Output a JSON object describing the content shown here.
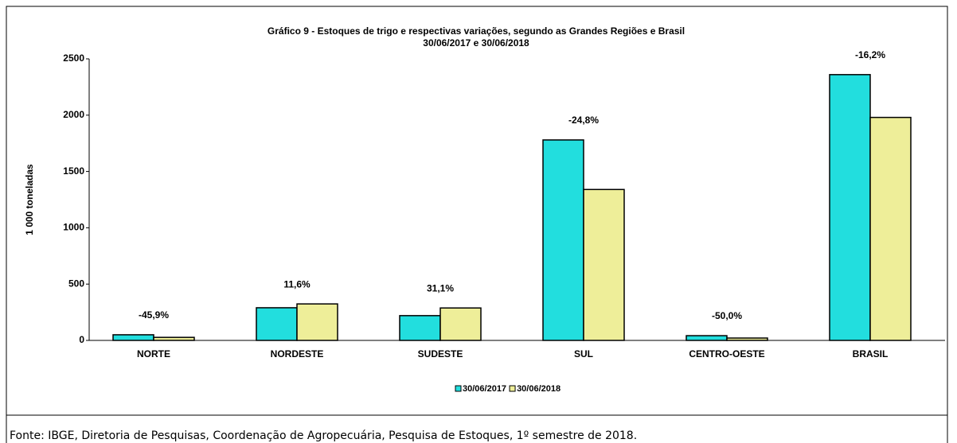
{
  "chart_data": {
    "type": "bar",
    "title": "Gráfico 9 - Estoques de trigo e respectivas variações, segundo as Grandes Regiões e Brasil",
    "subtitle": "30/06/2017 e 30/06/2018",
    "y_label": "1 000 toneladas",
    "categories": [
      "NORTE",
      "NORDESTE",
      "SUDESTE",
      "SUL",
      "CENTRO-OESTE",
      "BRASIL"
    ],
    "series": [
      {
        "name": "30/06/2017",
        "color": "#22dede",
        "values": [
          50,
          290,
          220,
          1780,
          42,
          2360
        ]
      },
      {
        "name": "30/06/2018",
        "color": "#eeee99",
        "values": [
          27,
          324,
          288,
          1340,
          21,
          1980
        ]
      }
    ],
    "change_labels": [
      "-45,9%",
      "11,6%",
      "31,1%",
      "-24,8%",
      "-50,0%",
      "-16,2%"
    ],
    "ylim": [
      0,
      2500
    ],
    "yticks": [
      0,
      500,
      1000,
      1500,
      2000,
      2500
    ],
    "legend": "bottom",
    "source": "Fonte: IBGE, Diretoria de Pesquisas, Coordenação de Agropecuária, Pesquisa de Estoques, 1º semestre de 2018."
  }
}
